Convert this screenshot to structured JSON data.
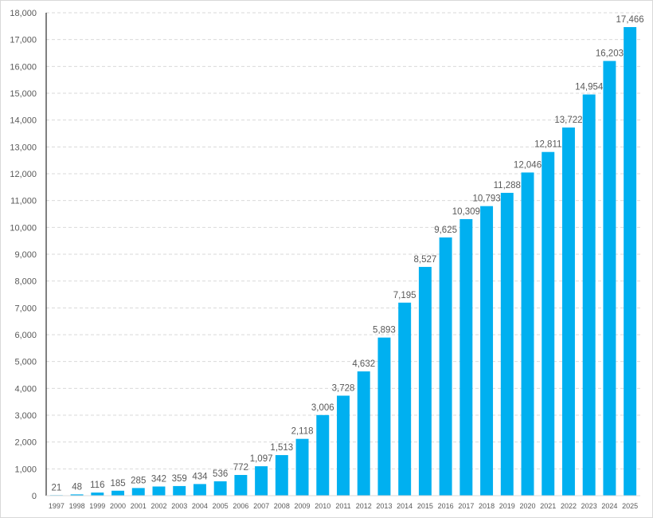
{
  "chart_data": {
    "type": "bar",
    "title": "",
    "xlabel": "",
    "ylabel": "",
    "categories": [
      "1997",
      "1998",
      "1999",
      "2000",
      "2001",
      "2002",
      "2003",
      "2004",
      "2005",
      "2006",
      "2007",
      "2008",
      "2009",
      "2010",
      "2011",
      "2012",
      "2013",
      "2014",
      "2015",
      "2016",
      "2017",
      "2018",
      "2019",
      "2020",
      "2021",
      "2022",
      "2023",
      "2024",
      "2025"
    ],
    "values": [
      21,
      48,
      116,
      185,
      285,
      342,
      359,
      434,
      536,
      772,
      1097,
      1513,
      2118,
      3006,
      3728,
      4632,
      5893,
      7195,
      8527,
      9625,
      10309,
      10793,
      11288,
      12046,
      12811,
      13722,
      14954,
      16203,
      17466
    ],
    "data_labels": [
      "21",
      "48",
      "116",
      "185",
      "285",
      "342",
      "359",
      "434",
      "536",
      "772",
      "1,097",
      "1,513",
      "2,118",
      "3,006",
      "3,728",
      "4,632",
      "5,893",
      "7,195",
      "8,527",
      "9,625",
      "10,309",
      "10,793",
      "11,288",
      "12,046",
      "12,811",
      "13,722",
      "14,954",
      "16,203",
      "17,466"
    ],
    "ylim": [
      0,
      18000
    ],
    "yticks": [
      0,
      1000,
      2000,
      3000,
      4000,
      5000,
      6000,
      7000,
      8000,
      9000,
      10000,
      11000,
      12000,
      13000,
      14000,
      15000,
      16000,
      17000,
      18000
    ],
    "ytick_labels": [
      "0",
      "1,000",
      "2,000",
      "3,000",
      "4,000",
      "5,000",
      "6,000",
      "7,000",
      "8,000",
      "9,000",
      "10,000",
      "11,000",
      "12,000",
      "13,000",
      "14,000",
      "15,000",
      "16,000",
      "17,000",
      "18,000"
    ],
    "grid": true,
    "legend": "none",
    "bar_color": "#00b0f0"
  }
}
